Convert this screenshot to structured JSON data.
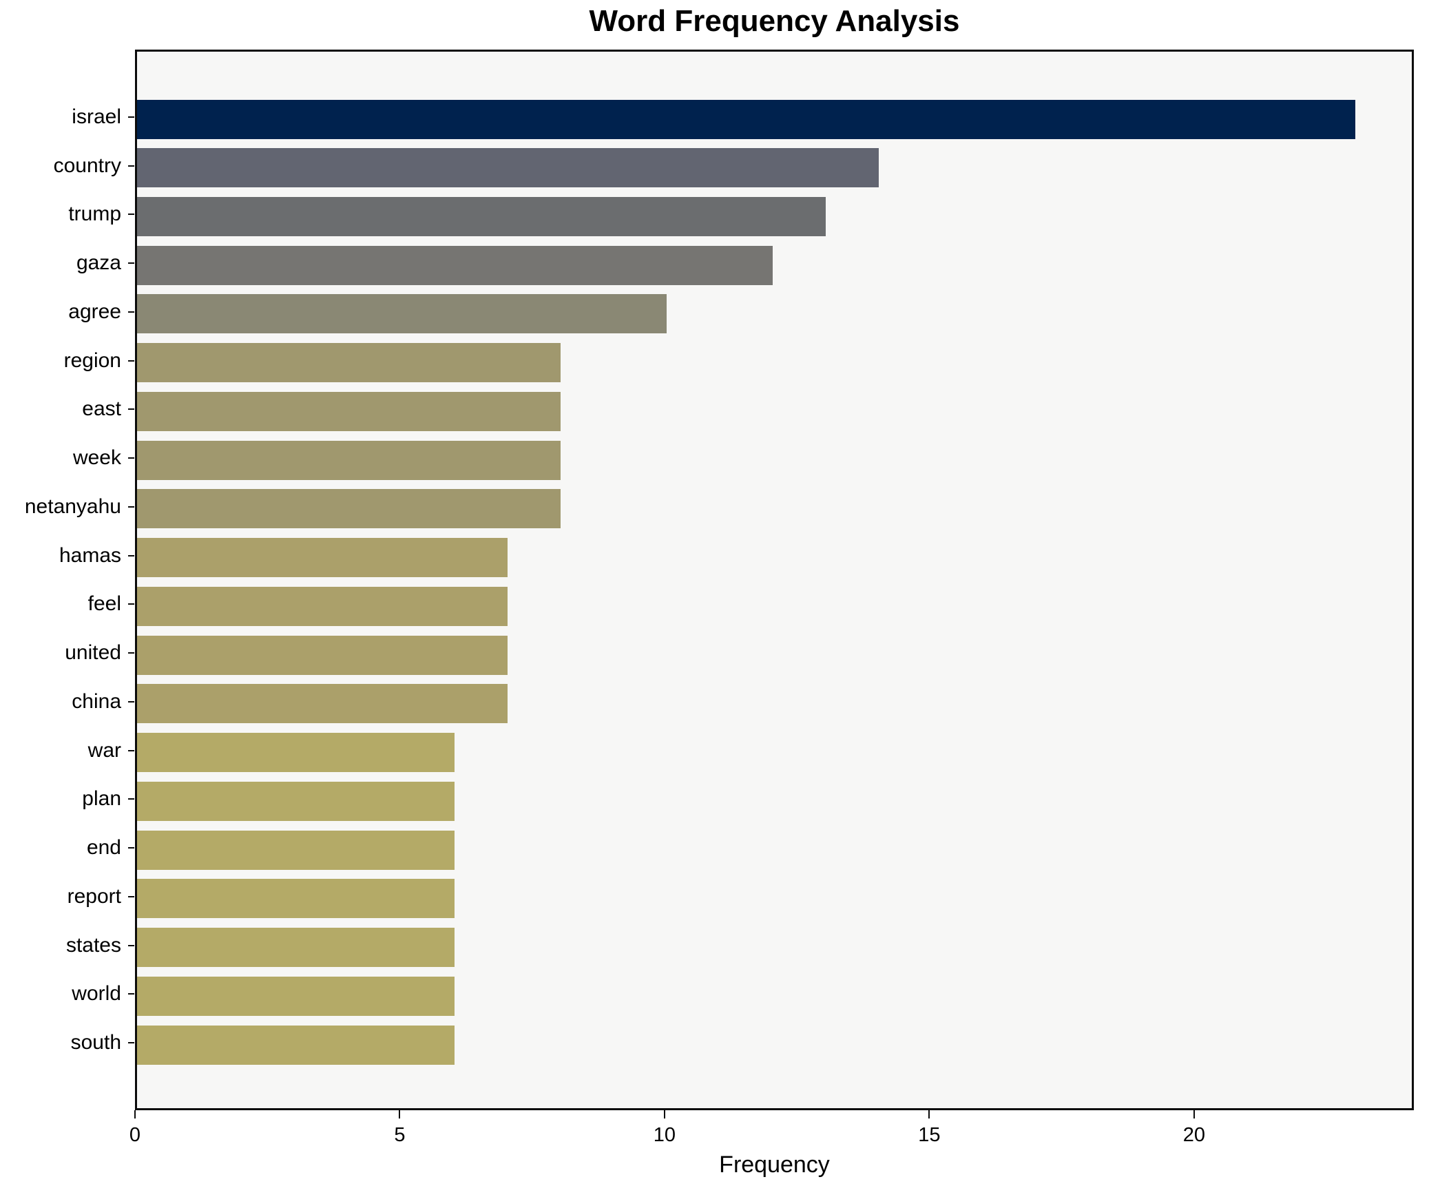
{
  "title": "Word Frequency Analysis",
  "chart_data": {
    "type": "bar",
    "orientation": "horizontal",
    "title": "Word Frequency Analysis",
    "xlabel": "Frequency",
    "ylabel": "",
    "categories": [
      "israel",
      "country",
      "trump",
      "gaza",
      "agree",
      "region",
      "east",
      "week",
      "netanyahu",
      "hamas",
      "feel",
      "united",
      "china",
      "war",
      "plan",
      "end",
      "report",
      "states",
      "world",
      "south"
    ],
    "values": [
      23,
      14,
      13,
      12,
      10,
      8,
      8,
      8,
      8,
      7,
      7,
      7,
      7,
      6,
      6,
      6,
      6,
      6,
      6,
      6
    ],
    "bar_colors": [
      "#00224e",
      "#626571",
      "#6b6d6f",
      "#767572",
      "#8a8874",
      "#a0986e",
      "#a0986e",
      "#a0986e",
      "#a0986e",
      "#aba06a",
      "#aba06a",
      "#aba06a",
      "#aba06a",
      "#b4aa67",
      "#b4aa67",
      "#b4aa67",
      "#b4aa67",
      "#b4aa67",
      "#b4aa67",
      "#b4aa67"
    ],
    "xlim": [
      0,
      24.15
    ],
    "x_ticks": [
      0,
      5,
      10,
      15,
      20
    ],
    "grid": false,
    "legend_position": "none",
    "plot_background": "#f7f7f6",
    "figure_background": "#ffffff"
  }
}
